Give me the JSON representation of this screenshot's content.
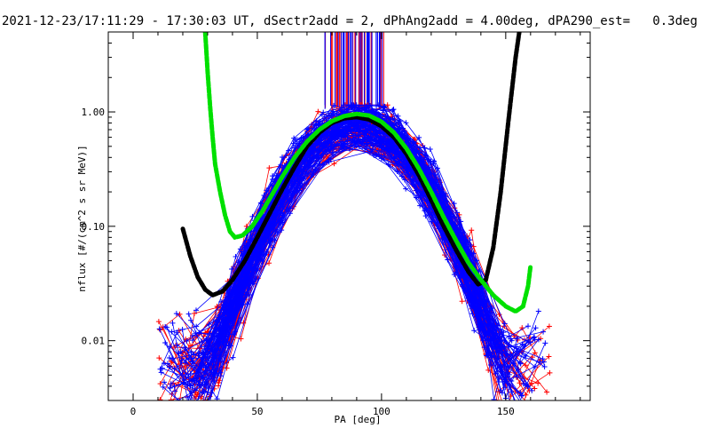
{
  "chart_data": {
    "type": "line",
    "title": "2021-12-23/17:11:29 - 17:30:03 UT, dSectr2add = 2, dPhAng2add = 4.00deg, dPA290_est=   0.3deg",
    "xlabel": "PA [deg]",
    "ylabel": "nflux [#/(cm^2 s sr MeV)]",
    "xlim": [
      -10,
      184
    ],
    "ylim": [
      0.003,
      5.0
    ],
    "yscale": "log",
    "x_ticks": [
      0,
      50,
      100,
      150
    ],
    "x_tick_labels": [
      "0",
      "50",
      "100",
      "150"
    ],
    "y_ticks": [
      0.01,
      0.1,
      1.0
    ],
    "y_tick_labels": [
      "0.01",
      "0.10",
      "1.00"
    ],
    "grid": false,
    "series": [
      {
        "kind": "black-fit",
        "color": "#000000",
        "points": [
          [
            20,
            0.095
          ],
          [
            23,
            0.055
          ],
          [
            26,
            0.036
          ],
          [
            29,
            0.028
          ],
          [
            32,
            0.025
          ],
          [
            36,
            0.027
          ],
          [
            40,
            0.034
          ],
          [
            45,
            0.05
          ],
          [
            50,
            0.08
          ],
          [
            55,
            0.13
          ],
          [
            60,
            0.21
          ],
          [
            65,
            0.33
          ],
          [
            70,
            0.5
          ],
          [
            75,
            0.66
          ],
          [
            80,
            0.8
          ],
          [
            85,
            0.88
          ],
          [
            90,
            0.9
          ],
          [
            95,
            0.86
          ],
          [
            100,
            0.75
          ],
          [
            105,
            0.6
          ],
          [
            110,
            0.43
          ],
          [
            115,
            0.28
          ],
          [
            120,
            0.17
          ],
          [
            125,
            0.1
          ],
          [
            130,
            0.062
          ],
          [
            135,
            0.04
          ],
          [
            139,
            0.031
          ],
          [
            142,
            0.034
          ],
          [
            145,
            0.065
          ],
          [
            148,
            0.2
          ],
          [
            151,
            0.8
          ],
          [
            154,
            3.0
          ],
          [
            156,
            6.0
          ]
        ]
      },
      {
        "kind": "green-fit",
        "color": "#00e000",
        "points": [
          [
            29,
            5.0
          ],
          [
            30,
            2.2
          ],
          [
            31,
            1.1
          ],
          [
            32,
            0.6
          ],
          [
            33,
            0.35
          ],
          [
            35,
            0.2
          ],
          [
            37,
            0.125
          ],
          [
            39,
            0.09
          ],
          [
            41,
            0.08
          ],
          [
            44,
            0.083
          ],
          [
            48,
            0.1
          ],
          [
            52,
            0.135
          ],
          [
            56,
            0.19
          ],
          [
            60,
            0.27
          ],
          [
            65,
            0.4
          ],
          [
            70,
            0.55
          ],
          [
            75,
            0.7
          ],
          [
            80,
            0.83
          ],
          [
            85,
            0.92
          ],
          [
            90,
            0.96
          ],
          [
            95,
            0.93
          ],
          [
            100,
            0.82
          ],
          [
            105,
            0.66
          ],
          [
            110,
            0.48
          ],
          [
            115,
            0.32
          ],
          [
            120,
            0.2
          ],
          [
            125,
            0.12
          ],
          [
            130,
            0.075
          ],
          [
            135,
            0.048
          ],
          [
            140,
            0.034
          ],
          [
            145,
            0.025
          ],
          [
            150,
            0.02
          ],
          [
            154,
            0.018
          ],
          [
            157,
            0.02
          ],
          [
            159,
            0.03
          ],
          [
            160,
            0.045
          ]
        ]
      }
    ],
    "scatter_series": [
      {
        "name": "",
        "color": "#ff0000",
        "count": 60,
        "seed": 7
      },
      {
        "name": "",
        "color": "#0000ff",
        "count": 110,
        "seed": 13
      }
    ],
    "vertical_markers": {
      "x_range": [
        77,
        101
      ],
      "y_from": 1.05,
      "colors": [
        "#ff0000",
        "#0000ff"
      ]
    }
  }
}
